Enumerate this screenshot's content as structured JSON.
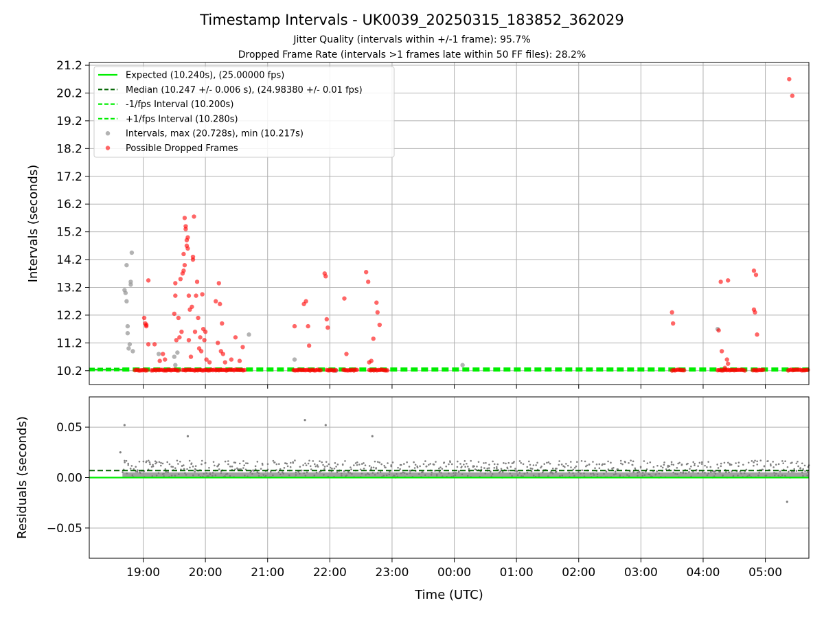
{
  "figure": {
    "title": "Timestamp Intervals - UK0039_20250315_183852_362029",
    "subtitle_1": "Jitter Quality (intervals within +/-1 frame): 95.7%",
    "subtitle_2": "Dropped Frame Rate (intervals >1 frames late within 50 FF files): 28.2%"
  },
  "chart_data": [
    {
      "type": "scatter",
      "xlabel": "",
      "ylabel": "Intervals (seconds)",
      "x_axis": "time (UTC)",
      "xlim": [
        "18:08",
        "05:42"
      ],
      "x_ticks": [
        "19:00",
        "20:00",
        "21:00",
        "22:00",
        "23:00",
        "00:00",
        "01:00",
        "02:00",
        "03:00",
        "04:00",
        "05:00"
      ],
      "ylim": [
        9.7,
        21.3
      ],
      "y_ticks": [
        10.2,
        11.2,
        12.2,
        13.2,
        14.2,
        15.2,
        16.2,
        17.2,
        18.2,
        19.2,
        20.2,
        21.2
      ],
      "grid": true,
      "legend_position": "top-left",
      "legend": [
        "Expected (10.240s), (25.00000 fps)",
        "Median (10.247 +/- 0.006 s), (24.98380 +/- 0.01 fps)",
        "-1/fps Interval (10.200s)",
        "+1/fps Interval (10.280s)",
        "Intervals, max (20.728s), min (10.217s)",
        "Possible Dropped Frames"
      ],
      "reference_lines": {
        "expected": 10.24,
        "median": 10.247,
        "lower": 10.2,
        "upper": 10.28
      },
      "baseline_band": {
        "x_start": "18:40",
        "x_end": "05:42",
        "y": 10.24
      },
      "colors": {
        "expected": "#00ee00",
        "median": "#006400",
        "bounds": "#00ee00",
        "intervals": "#999999",
        "dropped": "#ff0000"
      },
      "series": [
        {
          "name": "Intervals, max (20.728s), min (10.217s)",
          "points": [
            [
              "18:42",
              13.1
            ],
            [
              "18:43",
              13.0
            ],
            [
              "18:44",
              12.7
            ],
            [
              "18:44",
              14.0
            ],
            [
              "18:45",
              11.8
            ],
            [
              "18:45",
              11.55
            ],
            [
              "18:46",
              11.0
            ],
            [
              "18:47",
              11.15
            ],
            [
              "18:48",
              13.4
            ],
            [
              "18:48",
              13.3
            ],
            [
              "18:49",
              14.45
            ],
            [
              "18:50",
              10.9
            ],
            [
              "19:15",
              10.8
            ],
            [
              "19:30",
              10.7
            ],
            [
              "19:31",
              10.4
            ],
            [
              "19:33",
              10.85
            ],
            [
              "20:42",
              11.5
            ],
            [
              "21:26",
              10.6
            ],
            [
              "22:06",
              10.2
            ],
            [
              "00:08",
              10.4
            ],
            [
              "04:14",
              11.7
            ]
          ]
        },
        {
          "name": "Possible Dropped Frames",
          "points": [
            [
              "19:01",
              12.1
            ],
            [
              "19:02",
              11.9
            ],
            [
              "19:03",
              11.8
            ],
            [
              "19:03",
              11.85
            ],
            [
              "19:05",
              13.45
            ],
            [
              "19:05",
              11.15
            ],
            [
              "19:11",
              11.15
            ],
            [
              "19:16",
              10.55
            ],
            [
              "19:19",
              10.8
            ],
            [
              "19:21",
              10.6
            ],
            [
              "19:30",
              12.25
            ],
            [
              "19:31",
              12.9
            ],
            [
              "19:31",
              13.35
            ],
            [
              "19:32",
              11.3
            ],
            [
              "19:34",
              12.1
            ],
            [
              "19:35",
              11.4
            ],
            [
              "19:36",
              13.5
            ],
            [
              "19:37",
              11.6
            ],
            [
              "19:38",
              13.7
            ],
            [
              "19:39",
              13.8
            ],
            [
              "19:39",
              14.4
            ],
            [
              "19:40",
              14.0
            ],
            [
              "19:40",
              15.7
            ],
            [
              "19:41",
              15.4
            ],
            [
              "19:41",
              15.3
            ],
            [
              "19:42",
              14.9
            ],
            [
              "19:42",
              14.7
            ],
            [
              "19:43",
              15.0
            ],
            [
              "19:43",
              14.6
            ],
            [
              "19:44",
              12.9
            ],
            [
              "19:44",
              11.3
            ],
            [
              "19:45",
              12.4
            ],
            [
              "19:46",
              10.7
            ],
            [
              "19:47",
              12.5
            ],
            [
              "19:48",
              14.2
            ],
            [
              "19:48",
              14.3
            ],
            [
              "19:49",
              15.75
            ],
            [
              "19:50",
              11.6
            ],
            [
              "19:51",
              12.9
            ],
            [
              "19:52",
              13.4
            ],
            [
              "19:53",
              12.1
            ],
            [
              "19:54",
              11.0
            ],
            [
              "19:55",
              11.4
            ],
            [
              "19:56",
              10.9
            ],
            [
              "19:57",
              12.95
            ],
            [
              "19:58",
              11.7
            ],
            [
              "19:59",
              11.3
            ],
            [
              "20:00",
              11.6
            ],
            [
              "20:01",
              10.6
            ],
            [
              "20:04",
              10.5
            ],
            [
              "20:10",
              12.7
            ],
            [
              "20:12",
              11.2
            ],
            [
              "20:13",
              13.35
            ],
            [
              "20:14",
              12.6
            ],
            [
              "20:15",
              10.9
            ],
            [
              "20:16",
              11.9
            ],
            [
              "20:17",
              10.8
            ],
            [
              "20:19",
              10.5
            ],
            [
              "20:25",
              10.6
            ],
            [
              "20:29",
              11.4
            ],
            [
              "20:33",
              10.55
            ],
            [
              "20:36",
              11.05
            ],
            [
              "21:26",
              11.8
            ],
            [
              "21:35",
              12.6
            ],
            [
              "21:37",
              12.7
            ],
            [
              "21:39",
              11.8
            ],
            [
              "21:40",
              11.1
            ],
            [
              "21:55",
              13.7
            ],
            [
              "21:56",
              13.6
            ],
            [
              "21:57",
              12.05
            ],
            [
              "21:58",
              11.75
            ],
            [
              "22:14",
              12.8
            ],
            [
              "22:16",
              10.8
            ],
            [
              "22:35",
              13.75
            ],
            [
              "22:37",
              13.4
            ],
            [
              "22:38",
              10.5
            ],
            [
              "22:40",
              10.55
            ],
            [
              "22:42",
              11.35
            ],
            [
              "22:45",
              12.65
            ],
            [
              "22:46",
              12.3
            ],
            [
              "22:48",
              11.85
            ],
            [
              "03:30",
              12.3
            ],
            [
              "03:31",
              11.9
            ],
            [
              "04:15",
              11.65
            ],
            [
              "04:17",
              13.4
            ],
            [
              "04:18",
              10.9
            ],
            [
              "04:21",
              10.3
            ],
            [
              "04:23",
              10.6
            ],
            [
              "04:24",
              10.45
            ],
            [
              "04:24",
              13.45
            ],
            [
              "04:49",
              13.8
            ],
            [
              "04:49",
              12.4
            ],
            [
              "04:50",
              12.3
            ],
            [
              "04:51",
              13.65
            ],
            [
              "04:52",
              11.5
            ],
            [
              "05:23",
              20.7
            ],
            [
              "05:26",
              20.1
            ]
          ]
        },
        {
          "name": "Possible Dropped Frames (baseline clusters)",
          "clusters": [
            [
              "18:52",
              "19:05"
            ],
            [
              "19:08",
              "19:35"
            ],
            [
              "19:38",
              "20:38"
            ],
            [
              "21:25",
              "21:52"
            ],
            [
              "21:57",
              "22:06"
            ],
            [
              "22:13",
              "22:27"
            ],
            [
              "22:38",
              "22:56"
            ],
            [
              "03:30",
              "03:43"
            ],
            [
              "04:14",
              "04:41"
            ],
            [
              "04:48",
              "04:59"
            ],
            [
              "05:22",
              "05:42"
            ]
          ],
          "y": 10.22
        }
      ]
    },
    {
      "type": "scatter",
      "xlabel": "Time (UTC)",
      "ylabel": "Residuals (seconds)",
      "xlim": [
        "18:08",
        "05:42"
      ],
      "x_ticks": [
        "19:00",
        "20:00",
        "21:00",
        "22:00",
        "23:00",
        "00:00",
        "01:00",
        "02:00",
        "03:00",
        "04:00",
        "05:00"
      ],
      "ylim": [
        -0.08,
        0.08
      ],
      "y_ticks": [
        "0.05",
        "0.00",
        "−0.05"
      ],
      "y_tick_values": [
        0.05,
        0.0,
        -0.05
      ],
      "grid": true,
      "reference_lines": {
        "expected": 0.0,
        "median": 0.007
      },
      "colors": {
        "expected": "#00ee00",
        "median": "#006400",
        "residuals": "#808080"
      },
      "residual_band": {
        "x_start": "18:40",
        "x_end": "05:42",
        "y_min": 0.0,
        "y_max": 0.017
      },
      "outliers": [
        [
          "18:38",
          0.025
        ],
        [
          "18:42",
          0.052
        ],
        [
          "19:43",
          0.041
        ],
        [
          "21:36",
          0.057
        ],
        [
          "21:56",
          0.052
        ],
        [
          "22:41",
          0.041
        ],
        [
          "05:21",
          -0.024
        ]
      ]
    }
  ]
}
